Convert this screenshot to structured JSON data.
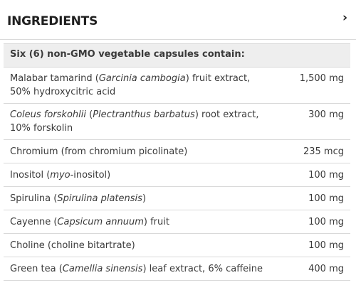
{
  "header": {
    "title": "INGREDIENTS",
    "chevron": "›",
    "chevron_icon": "chevron-right-icon"
  },
  "intro": "Six (6) non-GMO vegetable capsules contain:",
  "ingredients": [
    {
      "name_parts": [
        "Malabar tamarind (",
        "Garcinia cambogia",
        ") fruit extract, 50% hydroxycitric acid"
      ],
      "amount": "1,500 mg"
    },
    {
      "name_parts": [
        "",
        "Coleus forskohlii",
        " (",
        "Plectranthus barbatus",
        ") root extract, 10% forskolin"
      ],
      "amount": "300 mg"
    },
    {
      "name_parts": [
        "Chromium (from chromium picolinate)"
      ],
      "amount": "235 mcg"
    },
    {
      "name_parts": [
        "Inositol (",
        "myo",
        "-inositol)"
      ],
      "amount": "100 mg"
    },
    {
      "name_parts": [
        "Spirulina (",
        "Spirulina platensis",
        ")"
      ],
      "amount": "100 mg"
    },
    {
      "name_parts": [
        "Cayenne (",
        "Capsicum annuum",
        ") fruit"
      ],
      "amount": "100 mg"
    },
    {
      "name_parts": [
        "Choline (choline bitartrate)"
      ],
      "amount": "100 mg"
    },
    {
      "name_parts": [
        "Green tea (",
        "Camellia sinensis",
        ") leaf extract, 6% caffeine"
      ],
      "amount": "400 mg"
    }
  ]
}
